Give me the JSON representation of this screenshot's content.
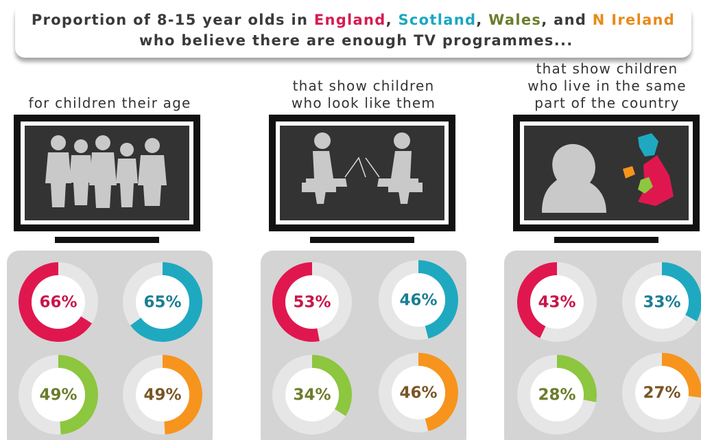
{
  "title": {
    "parts": [
      {
        "text": "Proportion of 8-15 year olds in "
      },
      {
        "text": "England",
        "color": "#d81b50"
      },
      {
        "text": ", "
      },
      {
        "text": "Scotland",
        "color": "#1aa7c1"
      },
      {
        "text": ", "
      },
      {
        "text": "Wales",
        "color": "#6b7d2b"
      },
      {
        "text": ", and "
      },
      {
        "text": "N Ireland",
        "color": "#e88a1a"
      },
      {
        "text": " who believe there are enough TV programmes..."
      }
    ]
  },
  "chart_data": [
    {
      "type": "donut",
      "subtitle": [
        "for children their age"
      ],
      "values": [
        66,
        65,
        49,
        49
      ],
      "value_labels": [
        "66%",
        "65%",
        "49%",
        "49%"
      ],
      "colors": [
        "#e0174f",
        "#1fa9c0",
        "#8dc63f",
        "#f7941d"
      ],
      "label_colors": [
        "#c8174a",
        "#1b7f93",
        "#6b7d2b",
        "#7a5526"
      ]
    },
    {
      "type": "donut",
      "subtitle": [
        "that show children",
        "who look like them"
      ],
      "values": [
        53,
        46,
        34,
        46
      ],
      "value_labels": [
        "53%",
        "46%",
        "34%",
        "46%"
      ],
      "colors": [
        "#e0174f",
        "#1fa9c0",
        "#8dc63f",
        "#f7941d"
      ],
      "label_colors": [
        "#c8174a",
        "#1b7f93",
        "#6b7d2b",
        "#7a5526"
      ]
    },
    {
      "type": "donut",
      "subtitle": [
        "that show children",
        "who live in the same",
        "part of the country"
      ],
      "values": [
        43,
        33,
        28,
        27
      ],
      "value_labels": [
        "43%",
        "33%",
        "28%",
        "27%"
      ],
      "colors": [
        "#e0174f",
        "#1fa9c0",
        "#8dc63f",
        "#f7941d"
      ],
      "label_colors": [
        "#c8174a",
        "#1b7f93",
        "#6b7d2b",
        "#7a5526"
      ]
    }
  ]
}
